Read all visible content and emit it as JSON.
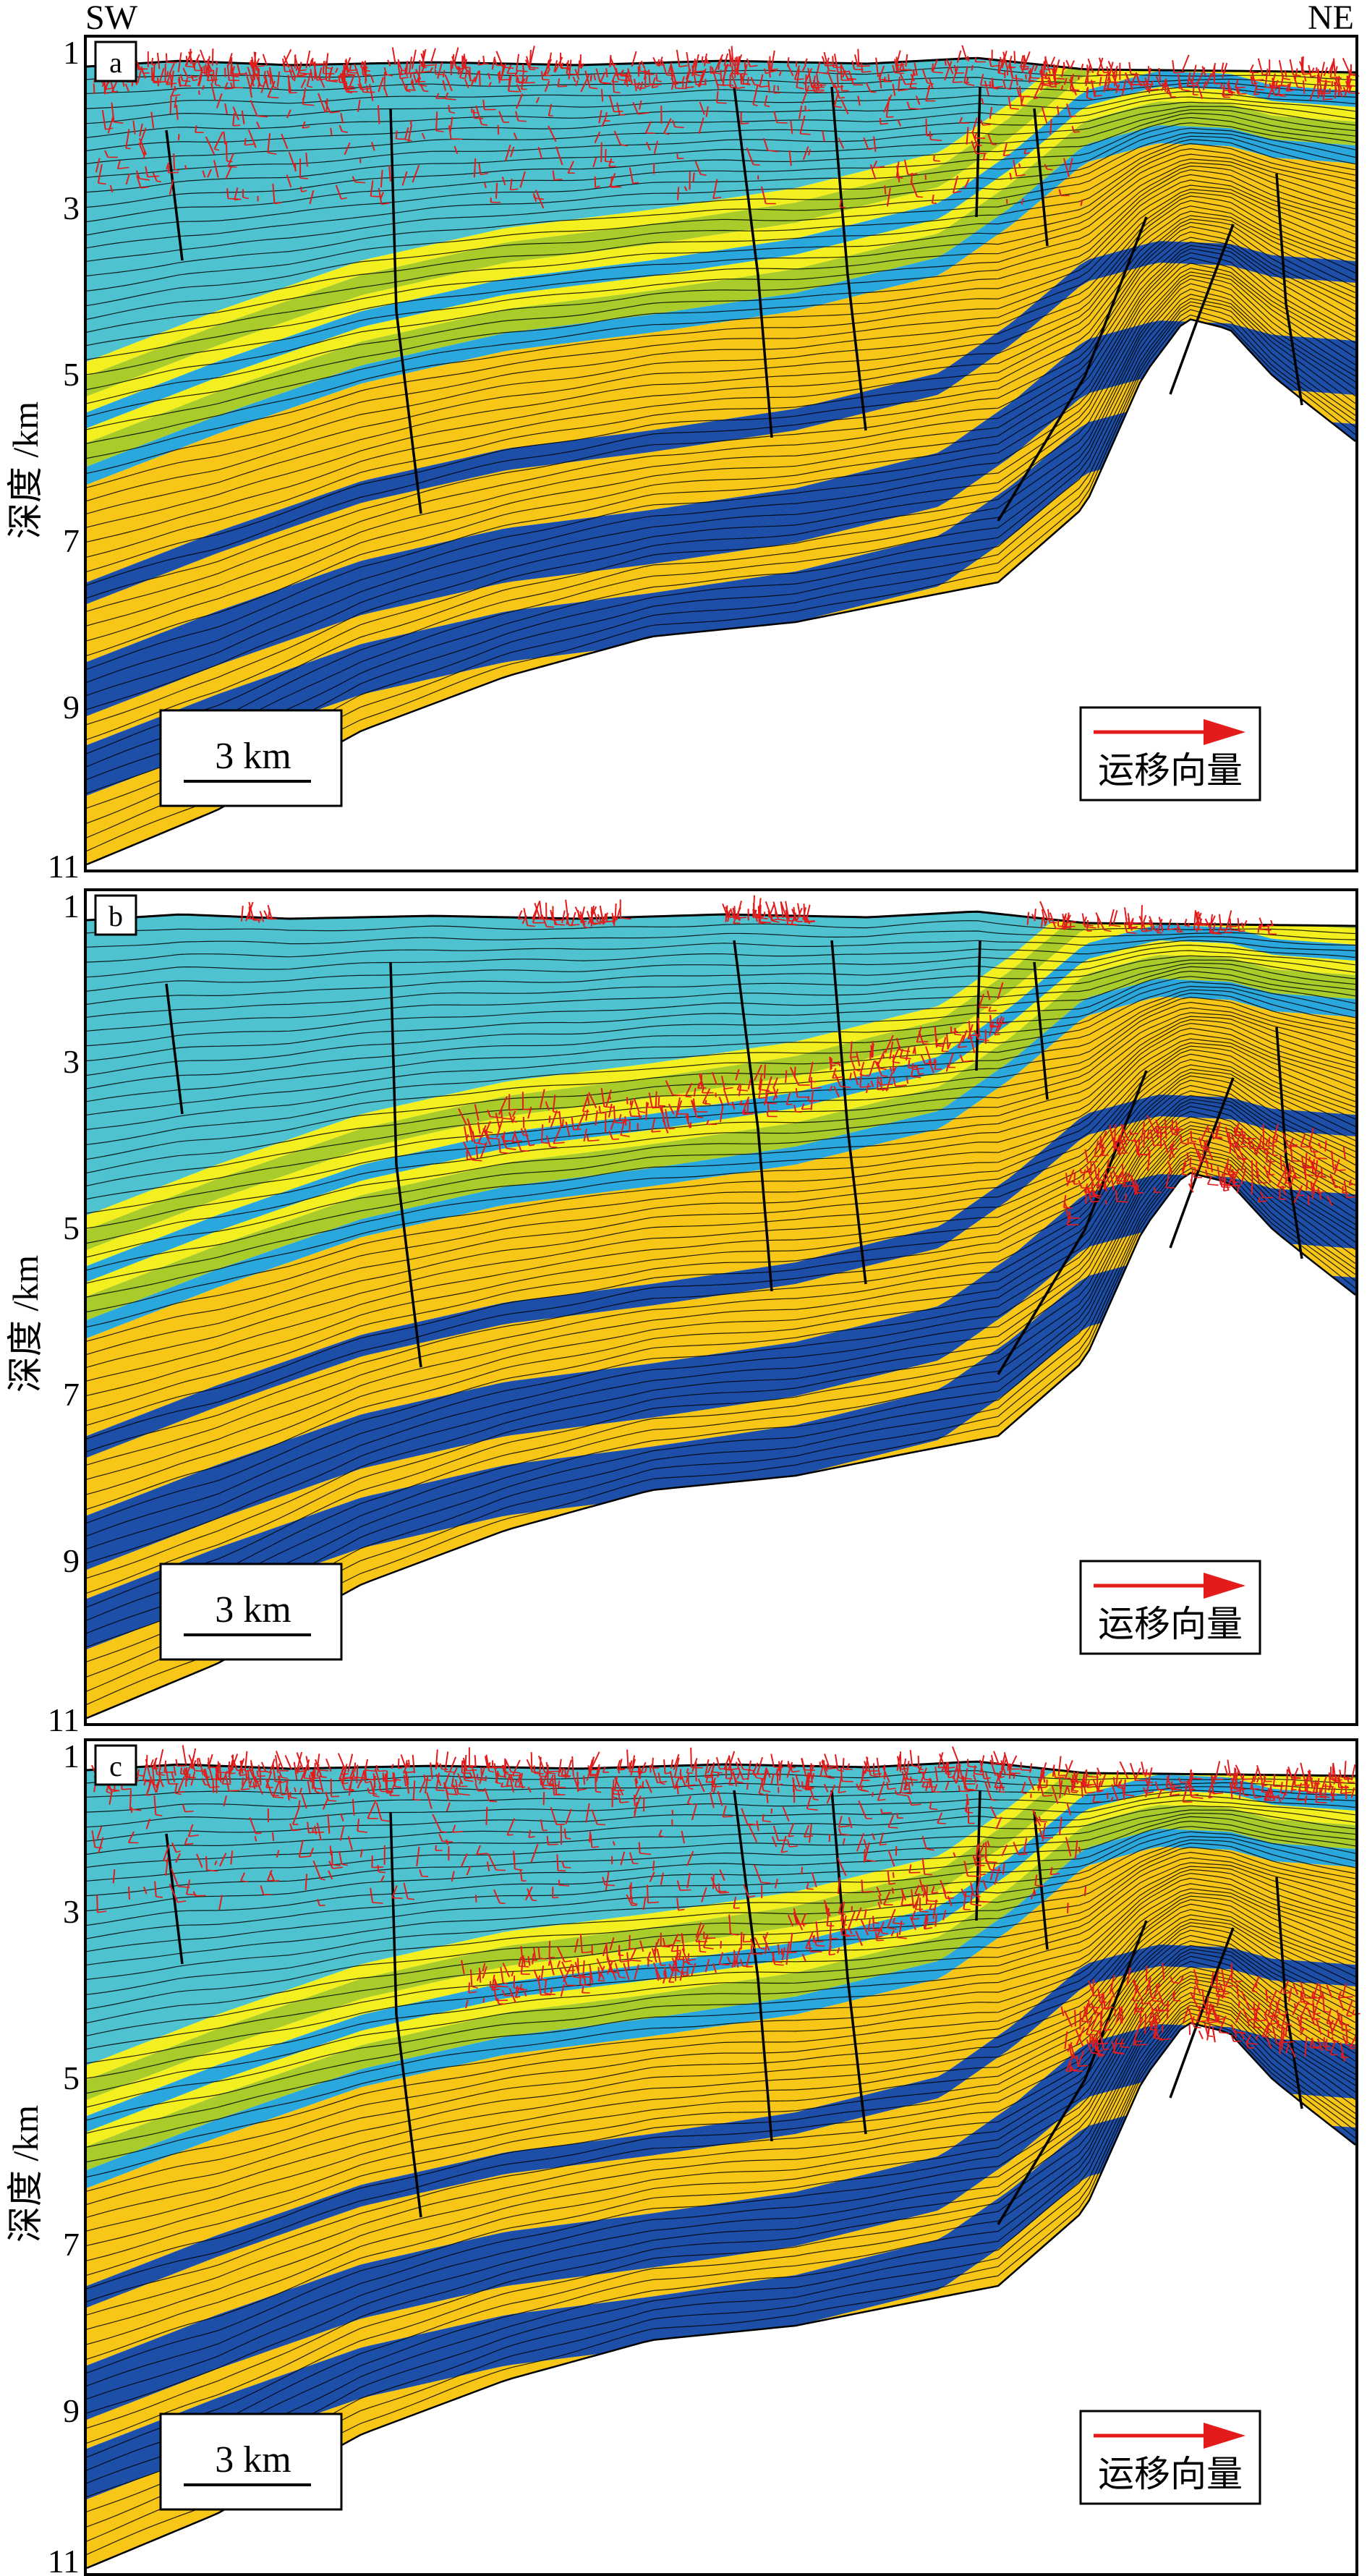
{
  "direction": {
    "left": "SW",
    "right": "NE"
  },
  "axis": {
    "ylabel": "深度 /km",
    "ticks": [
      "1",
      "3",
      "5",
      "7",
      "9",
      "11"
    ]
  },
  "panels": [
    {
      "letter": "a",
      "scale_label": "3 km",
      "legend_label": "运移向量",
      "migration_zones": [
        "shallow"
      ]
    },
    {
      "letter": "b",
      "scale_label": "3 km",
      "legend_label": "运移向量",
      "migration_zones": [
        "mid",
        "ne"
      ]
    },
    {
      "letter": "c",
      "scale_label": "3 km",
      "legend_label": "运移向量",
      "migration_zones": [
        "shallow",
        "mid",
        "ne"
      ]
    }
  ],
  "colors": {
    "cyan": "#4ec2cf",
    "light_blue": "#2aa7dc",
    "yellow_green": "#a9cc2a",
    "yellow": "#f4ef1e",
    "dark_blue": "#1d4fa8",
    "gold": "#f7c617",
    "vector": "#e31b1b",
    "line": "#000000"
  }
}
